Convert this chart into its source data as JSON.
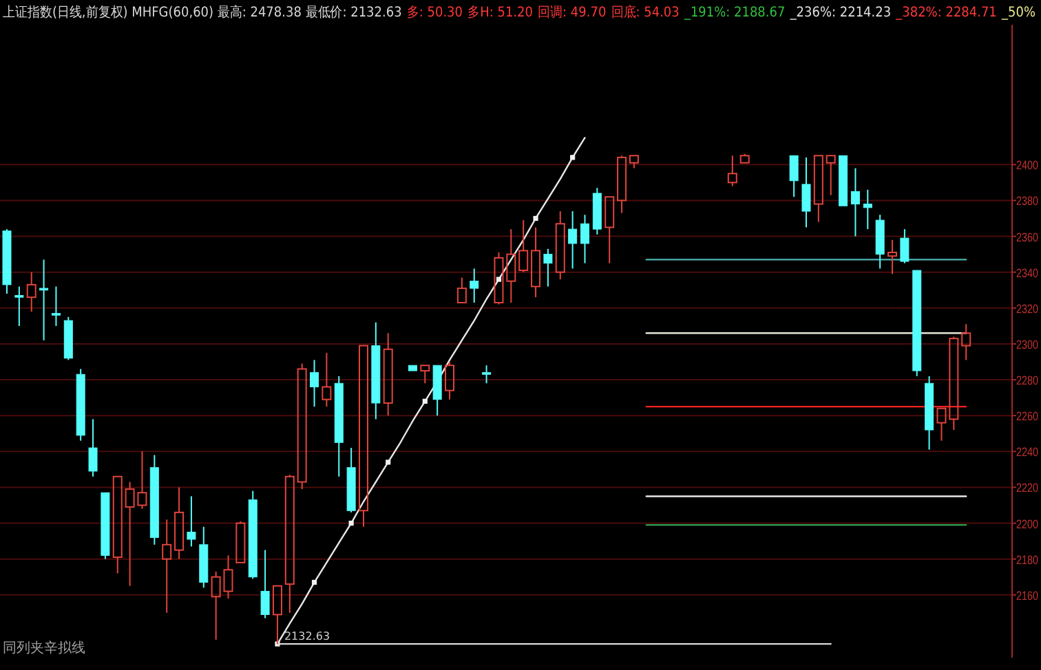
{
  "chart_data": {
    "type": "candlestick",
    "title": "上证指数(日线,前复权) MHFG(60,60) 最高: 2478.38 最低价: 2132.63",
    "annotations": [
      "多: 50.30",
      "多H: 51.20",
      "回调: 49.70",
      "回底: 54.03",
      "_191%: 2188.67",
      "_236%: 2214.23",
      "_382%: 2284.71",
      "_50%",
      "同列夹辛拟线",
      "2132.63"
    ],
    "categories": [
      null,
      null,
      null,
      null,
      null,
      null,
      null,
      null,
      null,
      null,
      null,
      null,
      null,
      null,
      null,
      null,
      null,
      null,
      null,
      null,
      null,
      null,
      null,
      null,
      null,
      null,
      null,
      null,
      null,
      null,
      null,
      null,
      null,
      null,
      null,
      null,
      null,
      null,
      null,
      null,
      null,
      null,
      null,
      null,
      null,
      null,
      null,
      null,
      null,
      null,
      null,
      null,
      null,
      null,
      null,
      null,
      null,
      null,
      null,
      null,
      null,
      null,
      null,
      null,
      null,
      null,
      null,
      null,
      null,
      null,
      null,
      null,
      null,
      null,
      null,
      null,
      null,
      null,
      null
    ],
    "ohlc": [
      [
        2363,
        2364,
        2328,
        2333
      ],
      [
        2327,
        2332,
        2310,
        2326
      ],
      [
        2326,
        2340,
        2318,
        2333
      ],
      [
        2331,
        2347,
        2302,
        2330
      ],
      [
        2317,
        2332,
        2310,
        2316
      ],
      [
        2313,
        2315,
        2291,
        2292
      ],
      [
        2283,
        2286,
        2246,
        2249
      ],
      [
        2242,
        2258,
        2226,
        2229
      ],
      [
        2217,
        2217,
        2180,
        2182
      ],
      [
        2181,
        2226,
        2172,
        2226
      ],
      [
        2209,
        2223,
        2165,
        2219
      ],
      [
        2210,
        2240,
        2208,
        2217
      ],
      [
        2231,
        2238,
        2188,
        2192
      ],
      [
        2180,
        2202,
        2150,
        2188
      ],
      [
        2185,
        2220,
        2180,
        2206
      ],
      [
        2195,
        2215,
        2187,
        2191
      ],
      [
        2188,
        2198,
        2164,
        2167
      ],
      [
        2159,
        2173,
        2135,
        2170
      ],
      [
        2162,
        2182,
        2158,
        2174
      ],
      [
        2178,
        2201,
        2178,
        2200
      ],
      [
        2213,
        2218,
        2169,
        2170
      ],
      [
        2162,
        2185,
        2147,
        2149
      ],
      [
        2149,
        2165,
        2132.63,
        2165
      ],
      [
        2166,
        2227,
        2150,
        2226
      ],
      [
        2223,
        2289,
        2219,
        2286
      ],
      [
        2284,
        2291,
        2265,
        2276
      ],
      [
        2269,
        2295,
        2265,
        2276
      ],
      [
        2278,
        2282,
        2226,
        2245
      ],
      [
        2231,
        2242,
        2206,
        2207
      ],
      [
        2207,
        2299,
        2198,
        2299
      ],
      [
        2299,
        2312,
        2258,
        2267
      ],
      [
        2267,
        2306,
        2260,
        2297
      ],
      null,
      [
        2288,
        2288,
        2285,
        2285
      ],
      [
        2285,
        2288,
        2278,
        2288
      ],
      [
        2288,
        2288,
        2260,
        2269
      ],
      [
        2274,
        2290,
        2269,
        2288
      ],
      [
        2323,
        2337,
        2323,
        2331
      ],
      [
        2335,
        2342,
        2323,
        2331
      ],
      [
        2284,
        2288,
        2278,
        2283
      ],
      [
        2323,
        2351,
        2322,
        2348
      ],
      [
        2335,
        2364,
        2323,
        2350
      ],
      [
        2341,
        2369,
        2340,
        2352
      ],
      [
        2332,
        2365,
        2326,
        2352
      ],
      [
        2350,
        2353,
        2332,
        2345
      ],
      [
        2340,
        2374,
        2336,
        2367
      ],
      [
        2364,
        2374,
        2342,
        2356
      ],
      [
        2367,
        2372,
        2345,
        2356
      ],
      [
        2384,
        2387,
        2361,
        2364
      ],
      [
        2365,
        2382,
        2345,
        2382
      ],
      [
        2380,
        2405,
        2373,
        2404
      ],
      [
        2401,
        2405,
        2398,
        2405
      ],
      null,
      null,
      null,
      null,
      null,
      null,
      null,
      [
        2390,
        2405,
        2388,
        2395
      ],
      [
        2401,
        2406,
        2401,
        2405
      ],
      null,
      null,
      null,
      [
        2405,
        2405,
        2382,
        2391
      ],
      [
        2389,
        2404,
        2365,
        2374
      ],
      [
        2378,
        2405,
        2368,
        2405
      ],
      [
        2401,
        2405,
        2383,
        2405
      ],
      [
        2405,
        2405,
        2377,
        2377
      ],
      [
        2385,
        2398,
        2360,
        2378
      ],
      [
        2378,
        2386,
        2364,
        2376
      ],
      [
        2369,
        2372,
        2342,
        2350
      ],
      [
        2349,
        2358,
        2339,
        2351
      ],
      [
        2359,
        2364,
        2345,
        2346
      ],
      [
        2341,
        2341,
        2282,
        2285
      ],
      [
        2278,
        2282,
        2241,
        2252
      ],
      [
        2256,
        2264,
        2246,
        2264
      ],
      [
        2258,
        2304,
        2252,
        2303
      ],
      [
        2299,
        2311,
        2291,
        2306
      ]
    ],
    "colors": [
      "#54fcfc",
      "#54fcfc",
      "#e0443c",
      "#54fcfc",
      "#54fcfc",
      "#54fcfc",
      "#54fcfc",
      "#54fcfc",
      "#54fcfc",
      "#e0443c",
      "#e0443c",
      "#e0443c",
      "#54fcfc",
      "#e0443c",
      "#e0443c",
      "#54fcfc",
      "#54fcfc",
      "#e0443c",
      "#e0443c",
      "#e0443c",
      "#54fcfc",
      "#54fcfc",
      "#e0443c",
      "#e0443c",
      "#e0443c",
      "#54fcfc",
      "#e0443c",
      "#54fcfc",
      "#54fcfc",
      "#e0443c",
      "#54fcfc",
      "#e0443c",
      null,
      "#54fcfc",
      "#e0443c",
      "#54fcfc",
      "#e0443c",
      "#e0443c",
      "#54fcfc",
      "#54fcfc",
      "#e0443c",
      "#e0443c",
      "#e0443c",
      "#e0443c",
      "#54fcfc",
      "#e0443c",
      "#54fcfc",
      "#54fcfc",
      "#54fcfc",
      "#e0443c",
      "#e0443c",
      "#e0443c",
      null,
      null,
      null,
      null,
      null,
      null,
      null,
      "#e0443c",
      "#e0443c",
      null,
      null,
      null,
      "#54fcfc",
      "#54fcfc",
      "#e0443c",
      "#e0443c",
      "#54fcfc",
      "#54fcfc",
      "#54fcfc",
      "#54fcfc",
      "#e0443c",
      "#54fcfc",
      "#54fcfc",
      "#54fcfc",
      "#e0443c",
      "#e0443c",
      "#e0443c"
    ],
    "series": [
      {
        "type": "line",
        "color": "#e8e8e8",
        "values": [
          null,
          null,
          null,
          null,
          null,
          null,
          null,
          null,
          null,
          null,
          null,
          null,
          null,
          null,
          null,
          null,
          null,
          null,
          null,
          null,
          null,
          null,
          2132.63,
          2144,
          2155,
          2167,
          2178,
          2189,
          2200,
          2212,
          2223,
          2234,
          2245,
          2257,
          2268,
          2279,
          2291,
          2302,
          2313,
          2325,
          2336,
          2347,
          2358,
          2370,
          2381,
          2392,
          2404,
          2415,
          null,
          null,
          null,
          null,
          null,
          null,
          null,
          null,
          null,
          null,
          null,
          null,
          null,
          null,
          null,
          null,
          null,
          null,
          null,
          null,
          null,
          null,
          null,
          null,
          null,
          null,
          null,
          null,
          null,
          null,
          null
        ]
      },
      {
        "type": "scatter",
        "color": "#f0f0f0",
        "marker": "square",
        "values": [
          null,
          null,
          null,
          null,
          null,
          null,
          null,
          null,
          null,
          null,
          null,
          null,
          null,
          null,
          null,
          null,
          null,
          null,
          null,
          null,
          null,
          null,
          2132.63,
          null,
          null,
          2167,
          null,
          null,
          2200,
          null,
          null,
          2234,
          null,
          null,
          2268,
          null,
          null,
          null,
          null,
          null,
          2336,
          null,
          null,
          2370,
          null,
          null,
          2404,
          null,
          null,
          null,
          null,
          null,
          null,
          null,
          null,
          null,
          null,
          null,
          null,
          null,
          null,
          null,
          null,
          null,
          null,
          null,
          null,
          null,
          null,
          null,
          null,
          null,
          null,
          null,
          null,
          null,
          null,
          null,
          null
        ]
      },
      {
        "type": "line",
        "color": "#d8d8d8",
        "values": [
          null,
          null,
          null,
          null,
          null,
          null,
          null,
          null,
          null,
          null,
          null,
          null,
          null,
          null,
          null,
          null,
          null,
          null,
          null,
          null,
          null,
          null,
          2132.63,
          2132.63,
          2132.63,
          2132.63,
          2132.63,
          2132.63,
          2132.63,
          2132.63,
          2132.63,
          2132.63,
          2132.63,
          2132.63,
          2132.63,
          2132.63,
          2132.63,
          2132.63,
          2132.63,
          2132.63,
          2132.63,
          2132.63,
          2132.63,
          2132.63,
          2132.63,
          2132.63,
          2132.63,
          2132.63,
          2132.63,
          2132.63,
          2132.63,
          2132.63,
          2132.63,
          2132.63,
          2132.63,
          2132.63,
          2132.63,
          2132.63,
          2132.63,
          2132.63,
          2132.63,
          2132.63,
          2132.63,
          2132.63,
          2132.63,
          2132.63,
          2132.63,
          2132.63,
          null,
          null,
          null,
          null,
          null,
          null,
          null,
          null,
          null,
          null,
          null
        ]
      },
      {
        "type": "line",
        "color": "#4fb4b4",
        "values": [
          null,
          null,
          null,
          null,
          null,
          null,
          null,
          null,
          null,
          null,
          null,
          null,
          null,
          null,
          null,
          null,
          null,
          null,
          null,
          null,
          null,
          null,
          null,
          null,
          null,
          null,
          null,
          null,
          null,
          null,
          null,
          null,
          null,
          null,
          null,
          null,
          null,
          null,
          null,
          null,
          null,
          null,
          null,
          null,
          null,
          null,
          null,
          null,
          null,
          null,
          null,
          null,
          2347,
          2347,
          2347,
          2347,
          2347,
          2347,
          2347,
          2347,
          2347,
          2347,
          2347,
          2347,
          2347,
          2347,
          2347,
          2347,
          2347,
          2347,
          2347,
          2347,
          2347,
          2347,
          2347,
          2347,
          2347,
          2347,
          2347
        ]
      },
      {
        "type": "line",
        "color": "#e8e8d8",
        "values": [
          null,
          null,
          null,
          null,
          null,
          null,
          null,
          null,
          null,
          null,
          null,
          null,
          null,
          null,
          null,
          null,
          null,
          null,
          null,
          null,
          null,
          null,
          null,
          null,
          null,
          null,
          null,
          null,
          null,
          null,
          null,
          null,
          null,
          null,
          null,
          null,
          null,
          null,
          null,
          null,
          null,
          null,
          null,
          null,
          null,
          null,
          null,
          null,
          null,
          null,
          null,
          null,
          2306,
          2306,
          2306,
          2306,
          2306,
          2306,
          2306,
          2306,
          2306,
          2306,
          2306,
          2306,
          2306,
          2306,
          2306,
          2306,
          2306,
          2306,
          2306,
          2306,
          2306,
          2306,
          2306,
          2306,
          2306,
          2306,
          2306
        ]
      },
      {
        "type": "line",
        "color": "#ff2020",
        "values": [
          null,
          null,
          null,
          null,
          null,
          null,
          null,
          null,
          null,
          null,
          null,
          null,
          null,
          null,
          null,
          null,
          null,
          null,
          null,
          null,
          null,
          null,
          null,
          null,
          null,
          null,
          null,
          null,
          null,
          null,
          null,
          null,
          null,
          null,
          null,
          null,
          null,
          null,
          null,
          null,
          null,
          null,
          null,
          null,
          null,
          null,
          null,
          null,
          null,
          null,
          null,
          null,
          2265,
          2265,
          2265,
          2265,
          2265,
          2265,
          2265,
          2265,
          2265,
          2265,
          2265,
          2265,
          2265,
          2265,
          2265,
          2265,
          2265,
          2265,
          2265,
          2265,
          2265,
          2265,
          2265,
          2265,
          2265,
          2265,
          2265
        ]
      },
      {
        "type": "line",
        "color": "#e8e8e8",
        "values": [
          null,
          null,
          null,
          null,
          null,
          null,
          null,
          null,
          null,
          null,
          null,
          null,
          null,
          null,
          null,
          null,
          null,
          null,
          null,
          null,
          null,
          null,
          null,
          null,
          null,
          null,
          null,
          null,
          null,
          null,
          null,
          null,
          null,
          null,
          null,
          null,
          null,
          null,
          null,
          null,
          null,
          null,
          null,
          null,
          null,
          null,
          null,
          null,
          null,
          null,
          null,
          null,
          2215,
          2215,
          2215,
          2215,
          2215,
          2215,
          2215,
          2215,
          2215,
          2215,
          2215,
          2215,
          2215,
          2215,
          2215,
          2215,
          2215,
          2215,
          2215,
          2215,
          2215,
          2215,
          2215,
          2215,
          2215,
          2215,
          2215
        ]
      },
      {
        "type": "line",
        "color": "#2fa050",
        "values": [
          null,
          null,
          null,
          null,
          null,
          null,
          null,
          null,
          null,
          null,
          null,
          null,
          null,
          null,
          null,
          null,
          null,
          null,
          null,
          null,
          null,
          null,
          null,
          null,
          null,
          null,
          null,
          null,
          null,
          null,
          null,
          null,
          null,
          null,
          null,
          null,
          null,
          null,
          null,
          null,
          null,
          null,
          null,
          null,
          null,
          null,
          null,
          null,
          null,
          null,
          null,
          null,
          2199,
          2199,
          2199,
          2199,
          2199,
          2199,
          2199,
          2199,
          2199,
          2199,
          2199,
          2199,
          2199,
          2199,
          2199,
          2199,
          2199,
          2199,
          2199,
          2199,
          2199,
          2199,
          2199,
          2199,
          2199,
          2199,
          2199
        ]
      }
    ],
    "ylim": [
      2125,
      2478
    ],
    "yticks": [
      2160,
      2180,
      2200,
      2220,
      2240,
      2260,
      2280,
      2300,
      2320,
      2340,
      2360,
      2380,
      2400
    ],
    "grid": "y",
    "tick_labels": "y"
  }
}
